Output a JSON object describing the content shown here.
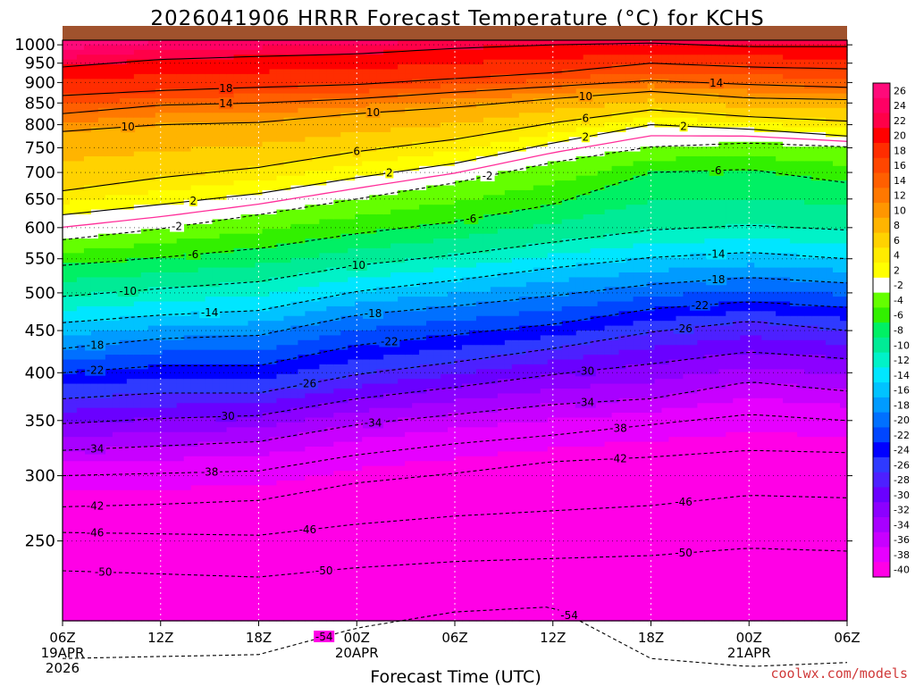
{
  "colors": {
    "credit": "#d03a3a",
    "ground": "#a0522d",
    "freezing_line": "#ff2e9a",
    "palette": [
      "#ff00e6",
      "#e600ff",
      "#c800ff",
      "#a800ff",
      "#8c00ff",
      "#6a00ff",
      "#4d20ff",
      "#2f3aff",
      "#0000ff",
      "#0046ff",
      "#0070ff",
      "#009bff",
      "#00c3ff",
      "#00e6ff",
      "#00f2c8",
      "#00eb96",
      "#00f064",
      "#32f000",
      "#64ff00",
      "#ffffff",
      "#ffff00",
      "#ffec00",
      "#ffd200",
      "#ffb400",
      "#ff9600",
      "#ff7800",
      "#ff5f00",
      "#ff4600",
      "#ff2d00",
      "#ff0000",
      "#ff0048",
      "#ff0064",
      "#ff0a7a"
    ]
  },
  "chart_data": {
    "type": "heatmap",
    "title": "2026041906 HRRR Forecast Temperature (°C) for KCHS",
    "xlabel": "Forecast Time (UTC)",
    "ylabel": "",
    "x_ticks": [
      {
        "l1": "06Z",
        "l2": "19APR",
        "l3": "2026"
      },
      {
        "l1": "12Z",
        "l2": "",
        "l3": ""
      },
      {
        "l1": "18Z",
        "l2": "",
        "l3": ""
      },
      {
        "l1": "00Z",
        "l2": "20APR",
        "l3": ""
      },
      {
        "l1": "06Z",
        "l2": "",
        "l3": ""
      },
      {
        "l1": "12Z",
        "l2": "",
        "l3": ""
      },
      {
        "l1": "18Z",
        "l2": "",
        "l3": ""
      },
      {
        "l1": "00Z",
        "l2": "21APR",
        "l3": ""
      },
      {
        "l1": "06Z",
        "l2": "",
        "l3": ""
      }
    ],
    "x_hours": [
      0,
      6,
      12,
      18,
      24,
      30,
      36,
      42,
      48
    ],
    "x_range_hours": [
      0,
      48
    ],
    "y_ticks": [
      1000,
      950,
      900,
      850,
      800,
      750,
      700,
      650,
      600,
      550,
      500,
      450,
      400,
      350,
      300,
      250
    ],
    "y_range_hpa": [
      1013,
      200
    ],
    "y_scale": "log",
    "grid": true,
    "colorbar": {
      "labels": [
        "26",
        "24",
        "22",
        "20",
        "18",
        "16",
        "14",
        "12",
        "10",
        "8",
        "6",
        "4",
        "2",
        "-2",
        "-4",
        "-6",
        "-8",
        "-10",
        "-12",
        "-14",
        "-16",
        "-18",
        "-20",
        "-22",
        "-24",
        "-26",
        "-28",
        "-30",
        "-32",
        "-34",
        "-36",
        "-38",
        "-40"
      ],
      "placement": "right"
    },
    "series_hours": [
      0,
      6,
      12,
      18,
      24,
      30,
      36,
      42,
      48
    ],
    "isotherms": [
      {
        "t": -54,
        "p": [
          180,
          181,
          182,
          196,
          205,
          208,
          180,
          176,
          178
        ]
      },
      {
        "t": -50,
        "p": [
          230,
          228,
          226,
          232,
          236,
          238,
          240,
          245,
          243
        ]
      },
      {
        "t": -46,
        "p": [
          256,
          255,
          254,
          262,
          268,
          272,
          276,
          284,
          282
        ]
      },
      {
        "t": -42,
        "p": [
          275,
          277,
          280,
          294,
          302,
          312,
          316,
          322,
          320
        ]
      },
      {
        "t": -38,
        "p": [
          300,
          302,
          304,
          318,
          328,
          336,
          346,
          356,
          350
        ]
      },
      {
        "t": -34,
        "p": [
          322,
          326,
          330,
          346,
          356,
          366,
          372,
          390,
          380
        ]
      },
      {
        "t": -30,
        "p": [
          347,
          352,
          355,
          372,
          384,
          398,
          410,
          424,
          416
        ]
      },
      {
        "t": -26,
        "p": [
          372,
          378,
          378,
          398,
          412,
          428,
          448,
          462,
          450
        ]
      },
      {
        "t": -22,
        "p": [
          400,
          408,
          408,
          432,
          445,
          458,
          478,
          488,
          480
        ]
      },
      {
        "t": -18,
        "p": [
          428,
          440,
          444,
          470,
          482,
          496,
          512,
          522,
          514
        ]
      },
      {
        "t": -14,
        "p": [
          460,
          470,
          476,
          502,
          518,
          536,
          552,
          560,
          550
        ]
      },
      {
        "t": -10,
        "p": [
          495,
          506,
          516,
          540,
          556,
          576,
          596,
          604,
          596
        ]
      },
      {
        "t": -6,
        "p": [
          540,
          552,
          566,
          590,
          610,
          640,
          700,
          706,
          680
        ]
      },
      {
        "t": -2,
        "p": [
          580,
          598,
          622,
          650,
          680,
          720,
          752,
          760,
          752
        ]
      },
      {
        "t": 2,
        "p": [
          622,
          640,
          660,
          690,
          718,
          760,
          800,
          790,
          775
        ]
      },
      {
        "t": 6,
        "p": [
          665,
          690,
          710,
          742,
          768,
          804,
          834,
          818,
          808
        ]
      },
      {
        "t": 10,
        "p": [
          785,
          800,
          805,
          825,
          840,
          860,
          878,
          862,
          858
        ]
      },
      {
        "t": 14,
        "p": [
          825,
          845,
          850,
          860,
          876,
          890,
          905,
          895,
          888
        ]
      },
      {
        "t": 18,
        "p": [
          868,
          880,
          888,
          895,
          910,
          925,
          950,
          940,
          935
        ]
      },
      {
        "t": 22,
        "p": [
          940,
          960,
          968,
          975,
          990,
          1000,
          1005,
          995,
          995
        ]
      }
    ],
    "labels": [
      {
        "h": 2.5,
        "t": -50,
        "text": "-50"
      },
      {
        "h": 16,
        "t": -54,
        "text": "-54"
      },
      {
        "h": 31,
        "t": -54,
        "text": "-54"
      },
      {
        "h": 16,
        "t": -50,
        "text": "-50"
      },
      {
        "h": 38,
        "t": -50,
        "text": "-50"
      },
      {
        "h": 2,
        "t": -46,
        "text": "-46"
      },
      {
        "h": 15,
        "t": -46,
        "text": "-46"
      },
      {
        "h": 38,
        "t": -46,
        "text": "-46"
      },
      {
        "h": 2,
        "t": -42,
        "text": "-42"
      },
      {
        "h": 34,
        "t": -42,
        "text": "-42"
      },
      {
        "h": 9,
        "t": -38,
        "text": "-38"
      },
      {
        "h": 34,
        "t": -38,
        "text": "-38"
      },
      {
        "h": 2,
        "t": -34,
        "text": "-34"
      },
      {
        "h": 19,
        "t": -34,
        "text": "-34"
      },
      {
        "h": 32,
        "t": -34,
        "text": "-34"
      },
      {
        "h": 10,
        "t": -30,
        "text": "-30"
      },
      {
        "h": 32,
        "t": -30,
        "text": "-30"
      },
      {
        "h": 15,
        "t": -26,
        "text": "-26"
      },
      {
        "h": 38,
        "t": -26,
        "text": "-26"
      },
      {
        "h": 2,
        "t": -22,
        "text": "-22"
      },
      {
        "h": 20,
        "t": -22,
        "text": "-22"
      },
      {
        "h": 39,
        "t": -22,
        "text": "-22"
      },
      {
        "h": 2,
        "t": -18,
        "text": "-18"
      },
      {
        "h": 19,
        "t": -18,
        "text": "-18"
      },
      {
        "h": 40,
        "t": -18,
        "text": "-18"
      },
      {
        "h": 9,
        "t": -14,
        "text": "-14"
      },
      {
        "h": 40,
        "t": -14,
        "text": "-14"
      },
      {
        "h": 4,
        "t": -10,
        "text": "-10"
      },
      {
        "h": 18,
        "t": -10,
        "text": "-10"
      },
      {
        "h": 8,
        "t": -6,
        "text": "-6"
      },
      {
        "h": 25,
        "t": -6,
        "text": "-6"
      },
      {
        "h": 40,
        "t": -6,
        "text": "-6"
      },
      {
        "h": 7,
        "t": -2,
        "text": "-2"
      },
      {
        "h": 26,
        "t": -2,
        "text": "-2"
      },
      {
        "h": 8,
        "t": 2,
        "text": "2"
      },
      {
        "h": 20,
        "t": 2,
        "text": "2"
      },
      {
        "h": 38,
        "t": 2,
        "text": "2"
      },
      {
        "h": 32,
        "t": 2,
        "text": "2"
      },
      {
        "h": 18,
        "t": 6,
        "text": "6"
      },
      {
        "h": 32,
        "t": 6,
        "text": "6"
      },
      {
        "h": 4,
        "t": 10,
        "text": "10"
      },
      {
        "h": 19,
        "t": 10,
        "text": "10"
      },
      {
        "h": 32,
        "t": 10,
        "text": "10"
      },
      {
        "h": 10,
        "t": 14,
        "text": "14"
      },
      {
        "h": 40,
        "t": 14,
        "text": "14"
      },
      {
        "h": 10,
        "t": 18,
        "text": "18"
      }
    ]
  },
  "credit": "coolwx.com/models"
}
